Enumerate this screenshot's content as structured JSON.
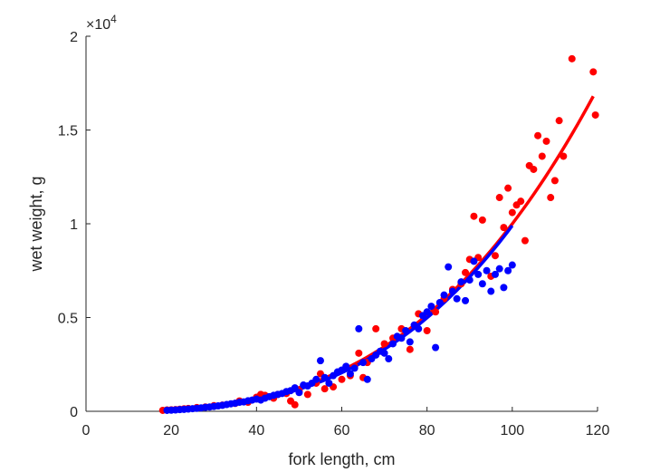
{
  "chart_data": {
    "type": "scatter",
    "title": "",
    "xlabel": "fork length, cm",
    "ylabel": "wet weight, g",
    "xlim": [
      0,
      120
    ],
    "ylim": [
      0,
      20000
    ],
    "x_ticks": [
      0,
      20,
      40,
      60,
      80,
      100,
      120
    ],
    "x_tick_labels": [
      "0",
      "20",
      "40",
      "60",
      "80",
      "100",
      "120"
    ],
    "y_ticks": [
      0,
      5000,
      10000,
      15000,
      20000
    ],
    "y_tick_labels": [
      "0",
      "0.5",
      "1",
      "1.5",
      "2"
    ],
    "y_exponent_base": "×10",
    "y_exponent_power": "4",
    "grid": false,
    "series": [
      {
        "color": "#ff0000",
        "points": [
          [
            18,
            50
          ],
          [
            19,
            70
          ],
          [
            20,
            80
          ],
          [
            21,
            90
          ],
          [
            22,
            110
          ],
          [
            23,
            130
          ],
          [
            24,
            150
          ],
          [
            26,
            200
          ],
          [
            28,
            230
          ],
          [
            30,
            300
          ],
          [
            32,
            330
          ],
          [
            35,
            420
          ],
          [
            36,
            550
          ],
          [
            38,
            480
          ],
          [
            40,
            750
          ],
          [
            41,
            900
          ],
          [
            42,
            850
          ],
          [
            44,
            700
          ],
          [
            45,
            900
          ],
          [
            47,
            950
          ],
          [
            48,
            550
          ],
          [
            49,
            350
          ],
          [
            50,
            1100
          ],
          [
            52,
            900
          ],
          [
            54,
            1500
          ],
          [
            55,
            2000
          ],
          [
            56,
            1200
          ],
          [
            58,
            1300
          ],
          [
            60,
            1700
          ],
          [
            62,
            1900
          ],
          [
            63,
            2400
          ],
          [
            64,
            3100
          ],
          [
            65,
            1800
          ],
          [
            66,
            2600
          ],
          [
            68,
            4400
          ],
          [
            70,
            3600
          ],
          [
            72,
            3900
          ],
          [
            74,
            4400
          ],
          [
            76,
            3300
          ],
          [
            78,
            5200
          ],
          [
            80,
            4300
          ],
          [
            82,
            5300
          ],
          [
            84,
            6000
          ],
          [
            86,
            6500
          ],
          [
            88,
            6800
          ],
          [
            89,
            7400
          ],
          [
            90,
            8100
          ],
          [
            91,
            10400
          ],
          [
            92,
            8200
          ],
          [
            93,
            10200
          ],
          [
            95,
            7200
          ],
          [
            96,
            8300
          ],
          [
            97,
            11400
          ],
          [
            98,
            9800
          ],
          [
            99,
            11900
          ],
          [
            100,
            10600
          ],
          [
            101,
            11000
          ],
          [
            102,
            11200
          ],
          [
            103,
            9100
          ],
          [
            104,
            13100
          ],
          [
            105,
            12900
          ],
          [
            106,
            14700
          ],
          [
            107,
            13600
          ],
          [
            108,
            14400
          ],
          [
            109,
            11400
          ],
          [
            110,
            12300
          ],
          [
            111,
            15500
          ],
          [
            112,
            13600
          ],
          [
            114,
            18800
          ],
          [
            119,
            18100
          ],
          [
            119.5,
            15800
          ]
        ],
        "fit": {
          "x_start": 18,
          "x_end": 119,
          "y_start": 60,
          "y_end": 16800
        }
      },
      {
        "color": "#0000ff",
        "points": [
          [
            19,
            50
          ],
          [
            20,
            60
          ],
          [
            21,
            70
          ],
          [
            22,
            90
          ],
          [
            23,
            100
          ],
          [
            24,
            120
          ],
          [
            25,
            140
          ],
          [
            26,
            160
          ],
          [
            27,
            180
          ],
          [
            28,
            210
          ],
          [
            29,
            230
          ],
          [
            30,
            260
          ],
          [
            31,
            290
          ],
          [
            32,
            320
          ],
          [
            33,
            360
          ],
          [
            34,
            400
          ],
          [
            35,
            430
          ],
          [
            36,
            480
          ],
          [
            37,
            500
          ],
          [
            38,
            560
          ],
          [
            39,
            600
          ],
          [
            40,
            650
          ],
          [
            41,
            600
          ],
          [
            42,
            700
          ],
          [
            43,
            780
          ],
          [
            44,
            850
          ],
          [
            45,
            900
          ],
          [
            46,
            950
          ],
          [
            47,
            1050
          ],
          [
            48,
            1100
          ],
          [
            49,
            1250
          ],
          [
            50,
            1000
          ],
          [
            51,
            1400
          ],
          [
            52,
            1350
          ],
          [
            53,
            1500
          ],
          [
            54,
            1700
          ],
          [
            55,
            2700
          ],
          [
            56,
            1800
          ],
          [
            57,
            1500
          ],
          [
            58,
            1900
          ],
          [
            59,
            2100
          ],
          [
            60,
            2200
          ],
          [
            61,
            2400
          ],
          [
            62,
            2000
          ],
          [
            63,
            2300
          ],
          [
            64,
            4400
          ],
          [
            65,
            2600
          ],
          [
            66,
            1700
          ],
          [
            67,
            2800
          ],
          [
            68,
            3000
          ],
          [
            69,
            3200
          ],
          [
            70,
            3100
          ],
          [
            71,
            2800
          ],
          [
            72,
            3600
          ],
          [
            73,
            4000
          ],
          [
            74,
            3900
          ],
          [
            75,
            4300
          ],
          [
            76,
            3700
          ],
          [
            77,
            4600
          ],
          [
            78,
            4400
          ],
          [
            79,
            5100
          ],
          [
            80,
            5300
          ],
          [
            81,
            5600
          ],
          [
            82,
            3400
          ],
          [
            83,
            5800
          ],
          [
            84,
            6200
          ],
          [
            85,
            7700
          ],
          [
            86,
            6400
          ],
          [
            87,
            6000
          ],
          [
            88,
            6900
          ],
          [
            89,
            5900
          ],
          [
            90,
            7000
          ],
          [
            91,
            8000
          ],
          [
            92,
            7300
          ],
          [
            93,
            6800
          ],
          [
            94,
            7500
          ],
          [
            95,
            6400
          ],
          [
            96,
            7300
          ],
          [
            97,
            7600
          ],
          [
            98,
            6600
          ],
          [
            99,
            7500
          ],
          [
            100,
            7800
          ]
        ],
        "fit": {
          "x_start": 19,
          "x_end": 100,
          "y_start": 60,
          "y_end": 9900
        }
      }
    ]
  }
}
